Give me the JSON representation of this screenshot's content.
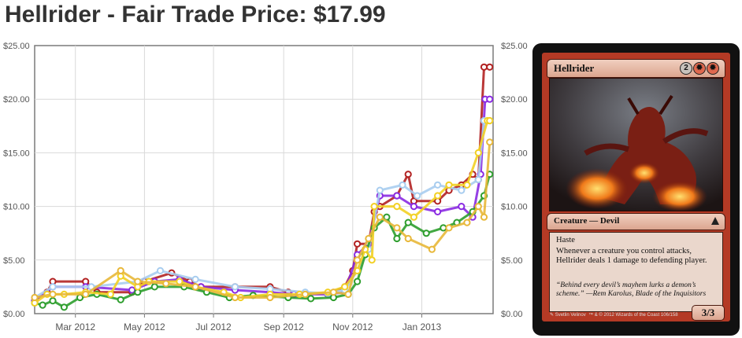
{
  "page": {
    "title": "Hellrider - Fair Trade Price: $17.99"
  },
  "chart_data": {
    "type": "line",
    "title": "",
    "xlabel": "",
    "ylabel": "",
    "x_ticks": [
      "Mar 2012",
      "May 2012",
      "Jul 2012",
      "Sep 2012",
      "Nov 2012",
      "Jan 2013"
    ],
    "x_range": [
      "2012-01-25",
      "2013-03-05"
    ],
    "y_ticks": [
      "$0.00",
      "$5.00",
      "$10.00",
      "$15.00",
      "$20.00",
      "$25.00"
    ],
    "ylim": [
      0,
      25
    ],
    "grid": true,
    "legend": "none",
    "series": [
      {
        "color": "#b22222",
        "points": [
          [
            "2012-01-25",
            1.2
          ],
          [
            "2012-02-05",
            2.0
          ],
          [
            "2012-02-10",
            3.0
          ],
          [
            "2012-03-10",
            3.0
          ],
          [
            "2012-03-20",
            2.0
          ],
          [
            "2012-04-20",
            2.0
          ],
          [
            "2012-05-01",
            3.0
          ],
          [
            "2012-05-25",
            3.8
          ],
          [
            "2012-06-10",
            3.0
          ],
          [
            "2012-06-20",
            2.5
          ],
          [
            "2012-07-20",
            2.5
          ],
          [
            "2012-08-20",
            2.5
          ],
          [
            "2012-09-05",
            2.0
          ],
          [
            "2012-10-10",
            1.8
          ],
          [
            "2012-10-25",
            2.5
          ],
          [
            "2012-11-01",
            4.0
          ],
          [
            "2012-11-05",
            6.5
          ],
          [
            "2012-11-15",
            6.5
          ],
          [
            "2012-11-20",
            9.5
          ],
          [
            "2012-11-25",
            10.0
          ],
          [
            "2012-12-10",
            11.0
          ],
          [
            "2012-12-20",
            13.0
          ],
          [
            "2012-12-25",
            10.5
          ],
          [
            "2013-01-15",
            10.5
          ],
          [
            "2013-01-25",
            11.5
          ],
          [
            "2013-02-05",
            12.0
          ],
          [
            "2013-02-15",
            13.0
          ],
          [
            "2013-02-20",
            12.5
          ],
          [
            "2013-02-25",
            23.0
          ],
          [
            "2013-03-02",
            23.0
          ]
        ]
      },
      {
        "color": "#8a2be2",
        "points": [
          [
            "2012-01-25",
            1.2
          ],
          [
            "2012-02-10",
            2.5
          ],
          [
            "2012-03-10",
            2.5
          ],
          [
            "2012-04-20",
            2.2
          ],
          [
            "2012-05-10",
            3.0
          ],
          [
            "2012-06-01",
            3.2
          ],
          [
            "2012-06-20",
            2.5
          ],
          [
            "2012-07-20",
            2.2
          ],
          [
            "2012-08-20",
            2.0
          ],
          [
            "2012-09-10",
            1.8
          ],
          [
            "2012-10-10",
            1.8
          ],
          [
            "2012-10-25",
            2.0
          ],
          [
            "2012-11-05",
            5.5
          ],
          [
            "2012-11-15",
            6.5
          ],
          [
            "2012-11-25",
            11.0
          ],
          [
            "2012-12-10",
            11.0
          ],
          [
            "2012-12-25",
            10.0
          ],
          [
            "2013-01-15",
            9.5
          ],
          [
            "2013-02-05",
            10.0
          ],
          [
            "2013-02-15",
            9.0
          ],
          [
            "2013-02-22",
            13.0
          ],
          [
            "2013-02-26",
            20.0
          ],
          [
            "2013-03-02",
            20.0
          ]
        ]
      },
      {
        "color": "#a8cdef",
        "points": [
          [
            "2012-01-25",
            1.5
          ],
          [
            "2012-02-10",
            2.5
          ],
          [
            "2012-03-15",
            2.5
          ],
          [
            "2012-04-25",
            3.0
          ],
          [
            "2012-05-15",
            4.0
          ],
          [
            "2012-06-15",
            3.2
          ],
          [
            "2012-07-20",
            2.5
          ],
          [
            "2012-08-20",
            2.3
          ],
          [
            "2012-09-20",
            2.0
          ],
          [
            "2012-10-10",
            1.9
          ],
          [
            "2012-10-25",
            2.2
          ],
          [
            "2012-11-05",
            4.0
          ],
          [
            "2012-11-15",
            6.0
          ],
          [
            "2012-11-25",
            11.5
          ],
          [
            "2012-12-15",
            12.0
          ],
          [
            "2012-12-28",
            11.0
          ],
          [
            "2013-01-15",
            12.0
          ],
          [
            "2013-02-05",
            11.5
          ],
          [
            "2013-02-20",
            12.5
          ],
          [
            "2013-02-25",
            18.0
          ],
          [
            "2013-03-02",
            18.0
          ]
        ]
      },
      {
        "color": "#2e9e2e",
        "points": [
          [
            "2012-01-25",
            1.0
          ],
          [
            "2012-02-01",
            0.8
          ],
          [
            "2012-02-10",
            1.2
          ],
          [
            "2012-02-20",
            0.6
          ],
          [
            "2012-03-05",
            1.5
          ],
          [
            "2012-03-20",
            1.8
          ],
          [
            "2012-04-10",
            1.3
          ],
          [
            "2012-04-25",
            2.0
          ],
          [
            "2012-05-10",
            2.5
          ],
          [
            "2012-06-05",
            2.5
          ],
          [
            "2012-06-25",
            2.0
          ],
          [
            "2012-07-15",
            1.5
          ],
          [
            "2012-08-05",
            1.7
          ],
          [
            "2012-09-05",
            1.5
          ],
          [
            "2012-09-25",
            1.4
          ],
          [
            "2012-10-15",
            1.5
          ],
          [
            "2012-10-28",
            1.8
          ],
          [
            "2012-11-05",
            3.0
          ],
          [
            "2012-11-12",
            5.5
          ],
          [
            "2012-11-20",
            8.0
          ],
          [
            "2012-12-01",
            9.0
          ],
          [
            "2012-12-10",
            7.0
          ],
          [
            "2012-12-20",
            8.5
          ],
          [
            "2013-01-05",
            7.5
          ],
          [
            "2013-01-20",
            8.0
          ],
          [
            "2013-02-01",
            8.5
          ],
          [
            "2013-02-15",
            9.5
          ],
          [
            "2013-02-25",
            11.0
          ],
          [
            "2013-03-02",
            13.0
          ]
        ]
      },
      {
        "color": "#f2d024",
        "points": [
          [
            "2012-01-25",
            1.0
          ],
          [
            "2012-02-05",
            1.8
          ],
          [
            "2012-02-20",
            1.8
          ],
          [
            "2012-03-10",
            2.0
          ],
          [
            "2012-04-01",
            1.8
          ],
          [
            "2012-04-10",
            3.5
          ],
          [
            "2012-04-25",
            2.5
          ],
          [
            "2012-05-05",
            3.0
          ],
          [
            "2012-06-01",
            3.0
          ],
          [
            "2012-06-15",
            2.5
          ],
          [
            "2012-07-10",
            2.0
          ],
          [
            "2012-07-25",
            1.5
          ],
          [
            "2012-08-20",
            1.8
          ],
          [
            "2012-09-15",
            1.8
          ],
          [
            "2012-10-10",
            2.0
          ],
          [
            "2012-10-25",
            2.5
          ],
          [
            "2012-11-05",
            4.0
          ],
          [
            "2012-11-12",
            6.0
          ],
          [
            "2012-11-18",
            5.0
          ],
          [
            "2012-11-20",
            10.0
          ],
          [
            "2012-12-10",
            10.0
          ],
          [
            "2012-12-25",
            9.0
          ],
          [
            "2013-01-15",
            11.0
          ],
          [
            "2013-01-25",
            12.0
          ],
          [
            "2013-02-10",
            12.0
          ],
          [
            "2013-02-20",
            15.0
          ],
          [
            "2013-02-28",
            18.0
          ],
          [
            "2013-03-02",
            18.0
          ]
        ]
      },
      {
        "color": "#e8b83a",
        "points": [
          [
            "2012-01-25",
            1.5
          ],
          [
            "2012-02-10",
            1.8
          ],
          [
            "2012-03-10",
            1.8
          ],
          [
            "2012-04-10",
            4.0
          ],
          [
            "2012-04-25",
            3.0
          ],
          [
            "2012-05-20",
            2.8
          ],
          [
            "2012-06-15",
            2.5
          ],
          [
            "2012-07-20",
            1.5
          ],
          [
            "2012-08-20",
            1.5
          ],
          [
            "2012-09-20",
            1.8
          ],
          [
            "2012-10-15",
            2.0
          ],
          [
            "2012-10-28",
            1.8
          ],
          [
            "2012-11-05",
            5.0
          ],
          [
            "2012-11-15",
            7.0
          ],
          [
            "2012-11-25",
            9.0
          ],
          [
            "2012-12-10",
            8.0
          ],
          [
            "2012-12-20",
            7.0
          ],
          [
            "2013-01-10",
            6.0
          ],
          [
            "2013-01-25",
            8.0
          ],
          [
            "2013-02-10",
            8.5
          ],
          [
            "2013-02-20",
            10.0
          ],
          [
            "2013-02-25",
            9.0
          ],
          [
            "2013-03-02",
            16.0
          ]
        ]
      }
    ]
  },
  "card": {
    "name": "Hellrider",
    "mana_generic": "2",
    "type_line": "Creature — Devil",
    "ability_1": "Haste",
    "ability_2": "Whenever a creature you control attacks, Hellrider deals 1 damage to defending player.",
    "flavor": "“Behind every devil’s mayhem lurks a demon’s scheme.” —Rem Karolus, Blade of the Inquisitors",
    "illustrator": "Svetlin Velinov",
    "copyright": "™ & © 2012 Wizards of the Coast 106/158",
    "power_toughness": "3/3"
  }
}
